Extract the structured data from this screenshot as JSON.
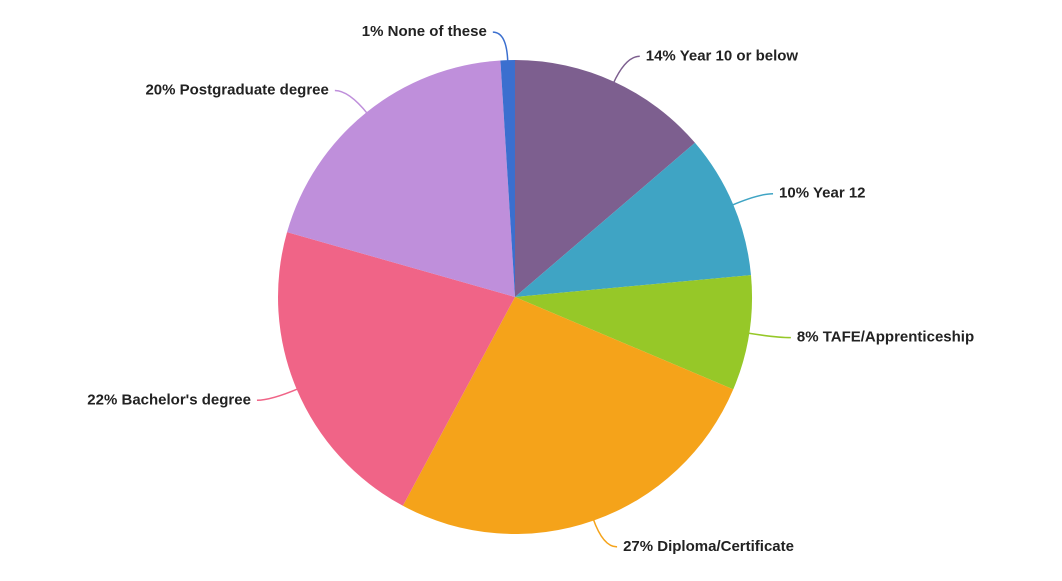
{
  "chart_data": {
    "type": "pie",
    "categories": [
      "Year 10 or below",
      "Year 12",
      "TAFE/Apprenticeship",
      "Diploma/Certificate",
      "Bachelor's degree",
      "Postgraduate degree",
      "None of these"
    ],
    "values": [
      14,
      10,
      8,
      27,
      22,
      20,
      1
    ],
    "value_labels": [
      "14%",
      "10%",
      "8%",
      "27%",
      "22%",
      "20%",
      "1%"
    ],
    "colors": [
      "#7d5f8f",
      "#3fa4c4",
      "#96c828",
      "#f5a31a",
      "#f06487",
      "#bf8fdb",
      "#3b6fcf"
    ]
  }
}
